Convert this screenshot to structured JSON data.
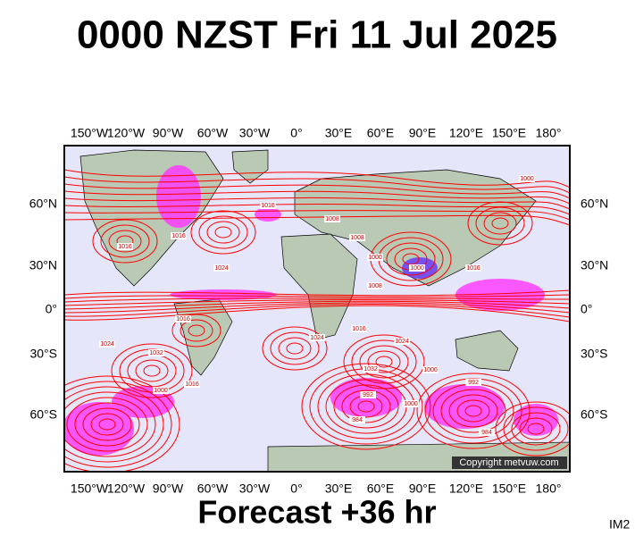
{
  "title": "0000 NZST Fri 11 Jul 2025",
  "subtitle": "Forecast +36 hr",
  "corner_label": "IM2",
  "copyright": "Copyright metvuw.com",
  "lon_labels": [
    "150°W",
    "120°W",
    "90°W",
    "60°W",
    "30°W",
    "0°",
    "30°E",
    "60°E",
    "90°E",
    "120°E",
    "150°E",
    "180°"
  ],
  "lat_labels": [
    "60°N",
    "30°N",
    "0°",
    "30°S",
    "60°S"
  ],
  "isobar_labels": [
    "1016",
    "1016",
    "1024",
    "1016",
    "1008",
    "1008",
    "1000",
    "1000",
    "1016",
    "1024",
    "1032",
    "1024",
    "1016",
    "1000",
    "1032",
    "1024",
    "992",
    "984",
    "1000",
    "1000",
    "992",
    "984",
    "1016",
    "1008",
    "1016",
    "1000"
  ]
}
